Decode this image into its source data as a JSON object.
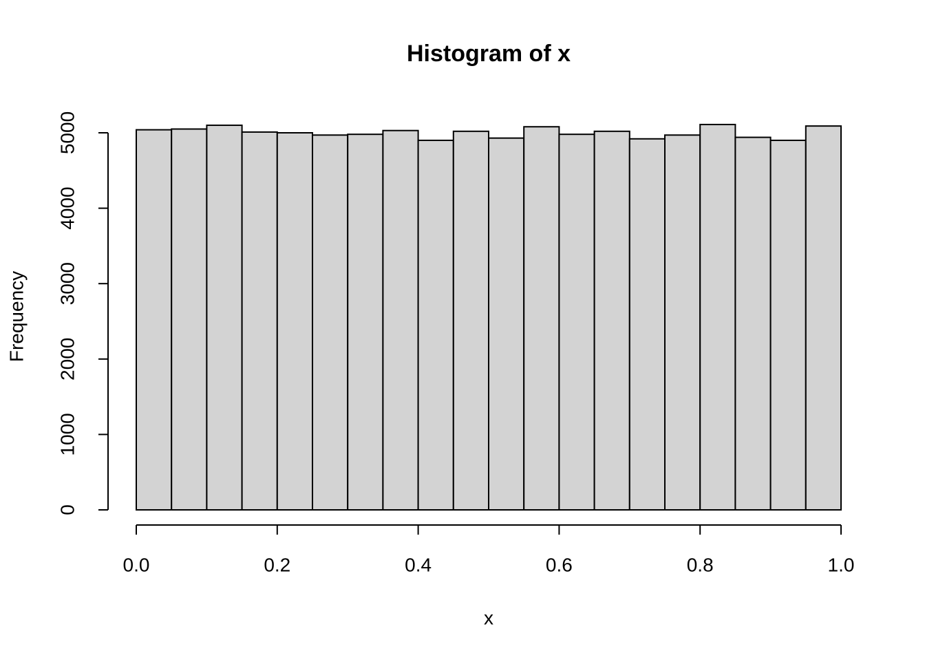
{
  "chart_data": {
    "type": "histogram",
    "title": "Histogram of x",
    "x_label": "x",
    "y_label": "Frequency",
    "bins": [
      0,
      0.05,
      0.1,
      0.15,
      0.2,
      0.25,
      0.3,
      0.35,
      0.4,
      0.45,
      0.5,
      0.55,
      0.6,
      0.65,
      0.7,
      0.75,
      0.8,
      0.85,
      0.9,
      0.95,
      1
    ],
    "values": [
      5040,
      5050,
      5100,
      5010,
      5000,
      4970,
      4980,
      5030,
      4900,
      5020,
      4930,
      5080,
      4980,
      5020,
      4920,
      4970,
      5110,
      4940,
      4900,
      5090
    ],
    "color": "#d3d3d3",
    "xlim": [
      0,
      1
    ],
    "ylim": [
      0,
      5110
    ],
    "xticks": [
      {
        "value": 0,
        "label": "0.0"
      },
      0.2,
      0.4,
      0.6,
      0.8,
      {
        "value": 1,
        "label": "1.0"
      }
    ],
    "yticks": [
      0,
      1000,
      2000,
      3000,
      4000,
      5000
    ]
  }
}
